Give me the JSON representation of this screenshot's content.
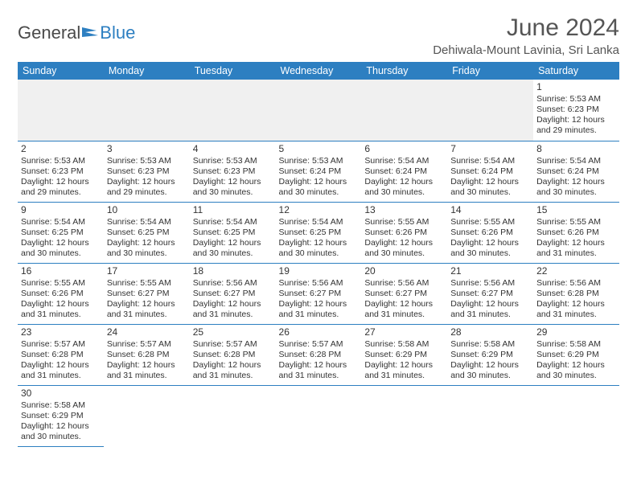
{
  "logo": {
    "text1": "General",
    "text2": "Blue",
    "color1": "#4a4a4a",
    "color2": "#2d7fc1"
  },
  "title": "June 2024",
  "location": "Dehiwala-Mount Lavinia, Sri Lanka",
  "header_bg": "#2d7fc1",
  "header_fg": "#ffffff",
  "border_color": "#2d7fc1",
  "empty_bg": "#f0f0f0",
  "weekdays": [
    "Sunday",
    "Monday",
    "Tuesday",
    "Wednesday",
    "Thursday",
    "Friday",
    "Saturday"
  ],
  "weeks": [
    [
      null,
      null,
      null,
      null,
      null,
      null,
      {
        "d": "1",
        "sr": "5:53 AM",
        "ss": "6:23 PM",
        "dl": "12 hours and 29 minutes."
      }
    ],
    [
      {
        "d": "2",
        "sr": "5:53 AM",
        "ss": "6:23 PM",
        "dl": "12 hours and 29 minutes."
      },
      {
        "d": "3",
        "sr": "5:53 AM",
        "ss": "6:23 PM",
        "dl": "12 hours and 29 minutes."
      },
      {
        "d": "4",
        "sr": "5:53 AM",
        "ss": "6:23 PM",
        "dl": "12 hours and 30 minutes."
      },
      {
        "d": "5",
        "sr": "5:53 AM",
        "ss": "6:24 PM",
        "dl": "12 hours and 30 minutes."
      },
      {
        "d": "6",
        "sr": "5:54 AM",
        "ss": "6:24 PM",
        "dl": "12 hours and 30 minutes."
      },
      {
        "d": "7",
        "sr": "5:54 AM",
        "ss": "6:24 PM",
        "dl": "12 hours and 30 minutes."
      },
      {
        "d": "8",
        "sr": "5:54 AM",
        "ss": "6:24 PM",
        "dl": "12 hours and 30 minutes."
      }
    ],
    [
      {
        "d": "9",
        "sr": "5:54 AM",
        "ss": "6:25 PM",
        "dl": "12 hours and 30 minutes."
      },
      {
        "d": "10",
        "sr": "5:54 AM",
        "ss": "6:25 PM",
        "dl": "12 hours and 30 minutes."
      },
      {
        "d": "11",
        "sr": "5:54 AM",
        "ss": "6:25 PM",
        "dl": "12 hours and 30 minutes."
      },
      {
        "d": "12",
        "sr": "5:54 AM",
        "ss": "6:25 PM",
        "dl": "12 hours and 30 minutes."
      },
      {
        "d": "13",
        "sr": "5:55 AM",
        "ss": "6:26 PM",
        "dl": "12 hours and 30 minutes."
      },
      {
        "d": "14",
        "sr": "5:55 AM",
        "ss": "6:26 PM",
        "dl": "12 hours and 30 minutes."
      },
      {
        "d": "15",
        "sr": "5:55 AM",
        "ss": "6:26 PM",
        "dl": "12 hours and 31 minutes."
      }
    ],
    [
      {
        "d": "16",
        "sr": "5:55 AM",
        "ss": "6:26 PM",
        "dl": "12 hours and 31 minutes."
      },
      {
        "d": "17",
        "sr": "5:55 AM",
        "ss": "6:27 PM",
        "dl": "12 hours and 31 minutes."
      },
      {
        "d": "18",
        "sr": "5:56 AM",
        "ss": "6:27 PM",
        "dl": "12 hours and 31 minutes."
      },
      {
        "d": "19",
        "sr": "5:56 AM",
        "ss": "6:27 PM",
        "dl": "12 hours and 31 minutes."
      },
      {
        "d": "20",
        "sr": "5:56 AM",
        "ss": "6:27 PM",
        "dl": "12 hours and 31 minutes."
      },
      {
        "d": "21",
        "sr": "5:56 AM",
        "ss": "6:27 PM",
        "dl": "12 hours and 31 minutes."
      },
      {
        "d": "22",
        "sr": "5:56 AM",
        "ss": "6:28 PM",
        "dl": "12 hours and 31 minutes."
      }
    ],
    [
      {
        "d": "23",
        "sr": "5:57 AM",
        "ss": "6:28 PM",
        "dl": "12 hours and 31 minutes."
      },
      {
        "d": "24",
        "sr": "5:57 AM",
        "ss": "6:28 PM",
        "dl": "12 hours and 31 minutes."
      },
      {
        "d": "25",
        "sr": "5:57 AM",
        "ss": "6:28 PM",
        "dl": "12 hours and 31 minutes."
      },
      {
        "d": "26",
        "sr": "5:57 AM",
        "ss": "6:28 PM",
        "dl": "12 hours and 31 minutes."
      },
      {
        "d": "27",
        "sr": "5:58 AM",
        "ss": "6:29 PM",
        "dl": "12 hours and 31 minutes."
      },
      {
        "d": "28",
        "sr": "5:58 AM",
        "ss": "6:29 PM",
        "dl": "12 hours and 30 minutes."
      },
      {
        "d": "29",
        "sr": "5:58 AM",
        "ss": "6:29 PM",
        "dl": "12 hours and 30 minutes."
      }
    ],
    [
      {
        "d": "30",
        "sr": "5:58 AM",
        "ss": "6:29 PM",
        "dl": "12 hours and 30 minutes."
      },
      null,
      null,
      null,
      null,
      null,
      null
    ]
  ],
  "labels": {
    "sunrise": "Sunrise:",
    "sunset": "Sunset:",
    "daylight": "Daylight:"
  }
}
